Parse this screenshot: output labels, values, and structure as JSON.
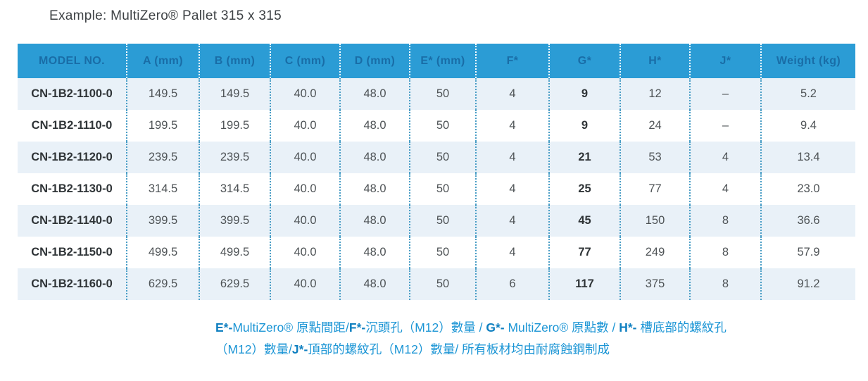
{
  "page": {
    "title": "Example: MultiZero® Pallet 315 x 315"
  },
  "colors": {
    "header_bg": "#2b9cd5",
    "header_text": "#196da7",
    "row_alt_bg": "#e9f1f8",
    "body_divider": "#4a9ec6",
    "header_divider": "#ffffff",
    "model_text": "#2f3437",
    "value_text": "#4e5356",
    "footnote_blue": "#1b95d5",
    "footnote_marker_blue": "#0e7fc0"
  },
  "table": {
    "columns": [
      "MODEL NO.",
      "A (mm)",
      "B (mm)",
      "C (mm)",
      "D (mm)",
      "E* (mm)",
      "F*",
      "G*",
      "H*",
      "J*",
      "Weight (kg)"
    ],
    "rows": [
      [
        "CN-1B2-1100-0",
        "149.5",
        "149.5",
        "40.0",
        "48.0",
        "50",
        "4",
        "9",
        "12",
        "–",
        "5.2"
      ],
      [
        "CN-1B2-1110-0",
        "199.5",
        "199.5",
        "40.0",
        "48.0",
        "50",
        "4",
        "9",
        "24",
        "–",
        "9.4"
      ],
      [
        "CN-1B2-1120-0",
        "239.5",
        "239.5",
        "40.0",
        "48.0",
        "50",
        "4",
        "21",
        "53",
        "4",
        "13.4"
      ],
      [
        "CN-1B2-1130-0",
        "314.5",
        "314.5",
        "40.0",
        "48.0",
        "50",
        "4",
        "25",
        "77",
        "4",
        "23.0"
      ],
      [
        "CN-1B2-1140-0",
        "399.5",
        "399.5",
        "40.0",
        "48.0",
        "50",
        "4",
        "45",
        "150",
        "8",
        "36.6"
      ],
      [
        "CN-1B2-1150-0",
        "499.5",
        "499.5",
        "40.0",
        "48.0",
        "50",
        "4",
        "77",
        "249",
        "8",
        "57.9"
      ],
      [
        "CN-1B2-1160-0",
        "629.5",
        "629.5",
        "40.0",
        "48.0",
        "50",
        "6",
        "117",
        "375",
        "8",
        "91.2"
      ]
    ]
  },
  "footnote": {
    "lines": [
      [
        {
          "text": "E*-",
          "bold": true
        },
        {
          "text": "MultiZero® 原點間距/",
          "bold": false
        },
        {
          "text": "F*-",
          "bold": true
        },
        {
          "text": "沉頭孔（M12）數量 / ",
          "bold": false
        },
        {
          "text": "G*-",
          "bold": true
        },
        {
          "text": " MultiZero® 原點數 / ",
          "bold": false
        },
        {
          "text": "H*-",
          "bold": true
        },
        {
          "text": " 槽底部的螺紋孔",
          "bold": false
        }
      ],
      [
        {
          "text": "（M12）數量/",
          "bold": false
        },
        {
          "text": "J*-",
          "bold": true
        },
        {
          "text": "頂部的螺紋孔（M12）數量/ 所有板材均由耐腐蝕鋼制成",
          "bold": false
        }
      ]
    ]
  }
}
